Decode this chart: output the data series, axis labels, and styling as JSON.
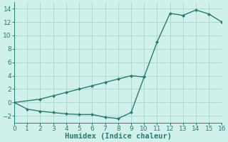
{
  "xlabel": "Humidex (Indice chaleur)",
  "line1_x": [
    0,
    2,
    3,
    4,
    5,
    6,
    7,
    8,
    9,
    10,
    11,
    12,
    13,
    14,
    15,
    16
  ],
  "line1_y": [
    0.0,
    0.5,
    1.0,
    1.5,
    2.0,
    2.5,
    3.0,
    3.5,
    4.0,
    3.8,
    9.0,
    13.3,
    13.0,
    13.8,
    13.2,
    12.0
  ],
  "line2_x": [
    0,
    1,
    2,
    3,
    4,
    5,
    6,
    7,
    8,
    9,
    10
  ],
  "line2_y": [
    0.0,
    -1.0,
    -1.3,
    -1.5,
    -1.7,
    -1.8,
    -1.8,
    -2.2,
    -2.4,
    -1.5,
    3.8
  ],
  "line_color": "#2d7a6e",
  "bg_color": "#cff0eb",
  "grid_color": "#b0d8d2",
  "xlim": [
    0,
    16
  ],
  "ylim": [
    -3,
    15
  ],
  "xticks": [
    0,
    1,
    2,
    3,
    4,
    5,
    6,
    7,
    8,
    9,
    10,
    11,
    12,
    13,
    14,
    15,
    16
  ],
  "yticks": [
    -2,
    0,
    2,
    4,
    6,
    8,
    10,
    12,
    14
  ],
  "tick_fontsize": 6.5,
  "xlabel_fontsize": 7.5
}
